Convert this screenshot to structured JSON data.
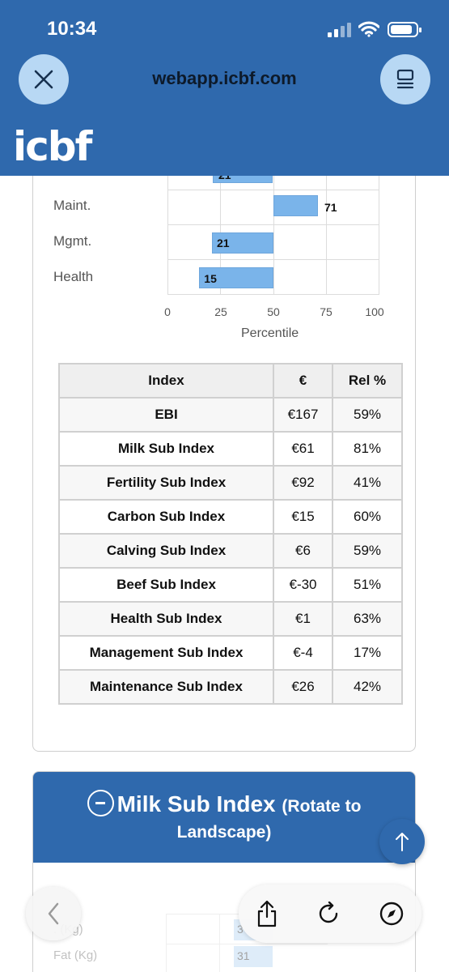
{
  "status_bar": {
    "time": "10:34"
  },
  "browser": {
    "url": "webapp.icbf.com"
  },
  "site": {
    "logo_text": "icbf"
  },
  "chart_data": {
    "type": "bar",
    "orientation": "horizontal",
    "categories": [
      "Maint.",
      "Mgmt.",
      "Health"
    ],
    "values": [
      71,
      21,
      15
    ],
    "partial_top_value": "21",
    "xlabel": "Percentile",
    "xlim": [
      0,
      100
    ],
    "xticks": [
      "0",
      "25",
      "50",
      "75",
      "100"
    ],
    "bar_color": "#7ab4ea"
  },
  "index_table": {
    "headers": [
      "Index",
      "€",
      "Rel %"
    ],
    "rows": [
      {
        "name": "EBI",
        "eur": "€167",
        "rel": "59%"
      },
      {
        "name": "Milk Sub Index",
        "eur": "€61",
        "rel": "81%"
      },
      {
        "name": "Fertility Sub Index",
        "eur": "€92",
        "rel": "41%"
      },
      {
        "name": "Carbon Sub Index",
        "eur": "€15",
        "rel": "60%"
      },
      {
        "name": "Calving Sub Index",
        "eur": "€6",
        "rel": "59%"
      },
      {
        "name": "Beef Sub Index",
        "eur": "€-30",
        "rel": "51%"
      },
      {
        "name": "Health Sub Index",
        "eur": "€1",
        "rel": "63%"
      },
      {
        "name": "Management Sub Index",
        "eur": "€-4",
        "rel": "17%"
      },
      {
        "name": "Maintenance Sub Index",
        "eur": "€26",
        "rel": "42%"
      }
    ]
  },
  "milk_section": {
    "title": "Milk Sub Index",
    "hint_part1": "(Rotate to",
    "hint_part2": "Landscape)",
    "rows": [
      {
        "label": ". (Kg)",
        "value": "3"
      },
      {
        "label": "Fat (Kg)",
        "value": "31"
      }
    ]
  },
  "colors": {
    "brand": "#2f69ad",
    "button_light": "#b8d8f4"
  },
  "icons": [
    "close-icon",
    "reader-icon",
    "arrow-up-icon",
    "back-icon",
    "share-icon",
    "reload-icon",
    "compass-icon"
  ]
}
